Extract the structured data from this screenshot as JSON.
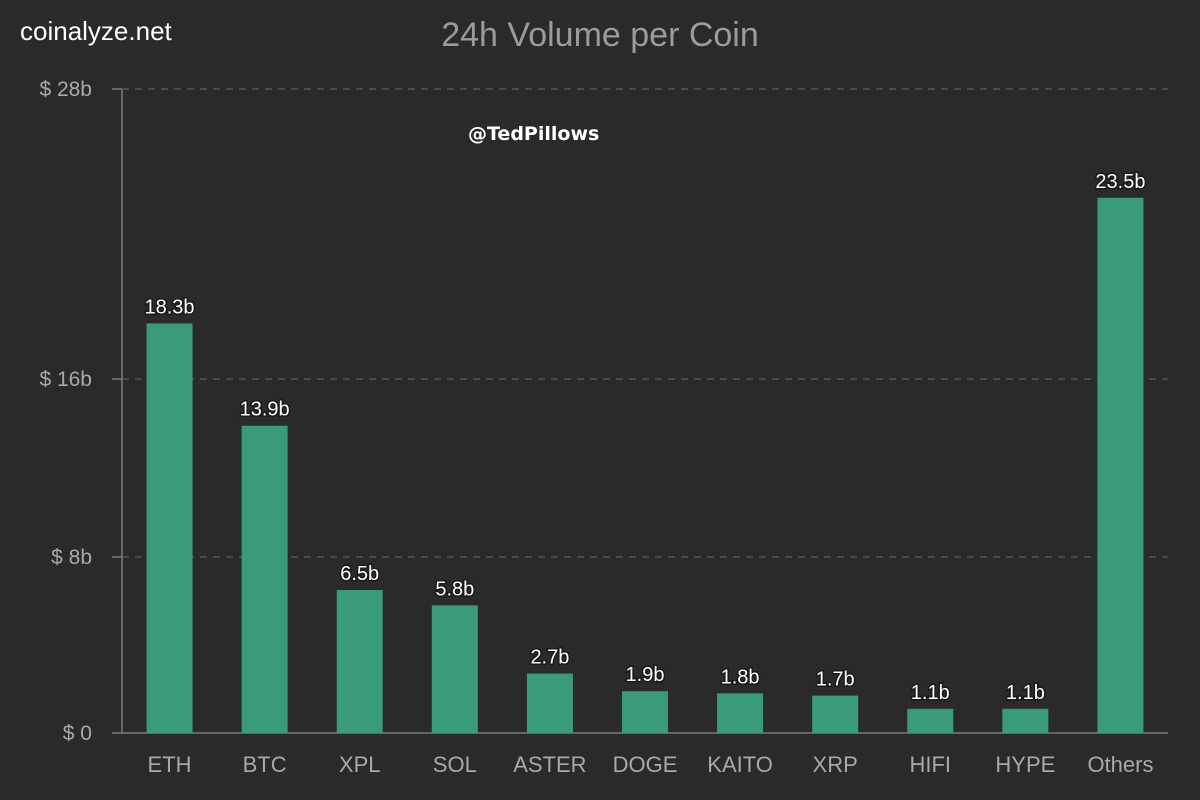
{
  "header": {
    "brand": "coinalyze.net",
    "watermark": "@TedPillows"
  },
  "colors": {
    "background": "#2a2a2a",
    "bar": "#3a9a7c",
    "grid": "#555555",
    "axis": "#7a7a7a",
    "tick_text": "#a9a9a9",
    "label_text": "#ffffff"
  },
  "chart_data": {
    "type": "bar",
    "title": "24h Volume per Coin",
    "xlabel": "",
    "ylabel": "",
    "categories": [
      "ETH",
      "BTC",
      "XPL",
      "SOL",
      "ASTER",
      "DOGE",
      "KAITO",
      "XRP",
      "HIFI",
      "HYPE",
      "Others"
    ],
    "values": [
      18.3,
      13.9,
      6.5,
      5.8,
      2.7,
      1.9,
      1.8,
      1.7,
      1.1,
      1.1,
      23.5
    ],
    "value_labels": [
      "18.3b",
      "13.9b",
      "6.5b",
      "5.8b",
      "2.7b",
      "1.9b",
      "1.8b",
      "1.7b",
      "1.1b",
      "1.1b",
      "23.5b"
    ],
    "y_ticks": [
      0,
      8,
      16,
      28
    ],
    "y_tick_labels": [
      "$ 0",
      "$ 8b",
      "$ 16b",
      "$ 28b"
    ],
    "ylim": [
      0,
      28
    ],
    "y_scale": "piecewise-linear",
    "grid": "horizontal dashed",
    "legend": "none"
  }
}
